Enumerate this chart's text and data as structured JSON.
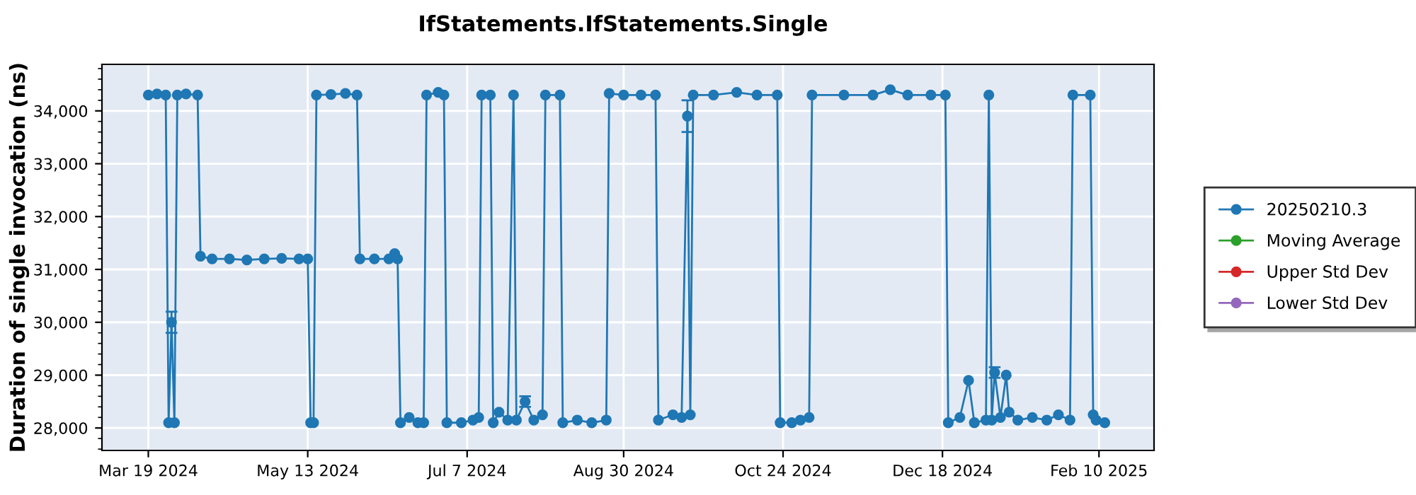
{
  "chart_data": {
    "type": "line",
    "title": "IfStatements.IfStatements.Single",
    "ylabel": "Duration of single invocation (ns)",
    "x": [
      "2024-03-19",
      "2024-03-22",
      "2024-03-25",
      "2024-03-26",
      "2024-03-27",
      "2024-03-28",
      "2024-03-29",
      "2024-04-01",
      "2024-04-05",
      "2024-04-06",
      "2024-04-10",
      "2024-04-16",
      "2024-04-22",
      "2024-04-28",
      "2024-05-04",
      "2024-05-10",
      "2024-05-13",
      "2024-05-14",
      "2024-05-15",
      "2024-05-16",
      "2024-05-21",
      "2024-05-26",
      "2024-05-30",
      "2024-05-31",
      "2024-06-05",
      "2024-06-10",
      "2024-06-12",
      "2024-06-13",
      "2024-06-14",
      "2024-06-17",
      "2024-06-20",
      "2024-06-22",
      "2024-06-23",
      "2024-06-27",
      "2024-06-29",
      "2024-06-30",
      "2024-07-05",
      "2024-07-09",
      "2024-07-11",
      "2024-07-12",
      "2024-07-15",
      "2024-07-16",
      "2024-07-18",
      "2024-07-21",
      "2024-07-23",
      "2024-07-24",
      "2024-07-27",
      "2024-07-30",
      "2024-08-02",
      "2024-08-03",
      "2024-08-08",
      "2024-08-09",
      "2024-08-14",
      "2024-08-19",
      "2024-08-24",
      "2024-08-25",
      "2024-08-30",
      "2024-09-05",
      "2024-09-10",
      "2024-09-11",
      "2024-09-16",
      "2024-09-19",
      "2024-09-21",
      "2024-09-22",
      "2024-09-23",
      "2024-09-30",
      "2024-10-08",
      "2024-10-15",
      "2024-10-22",
      "2024-10-23",
      "2024-10-27",
      "2024-10-30",
      "2024-11-02",
      "2024-11-03",
      "2024-11-14",
      "2024-11-24",
      "2024-11-30",
      "2024-12-06",
      "2024-12-14",
      "2024-12-19",
      "2024-12-20",
      "2024-12-24",
      "2024-12-27",
      "2024-12-29",
      "2025-01-02",
      "2025-01-03",
      "2025-01-04",
      "2025-01-05",
      "2025-01-07",
      "2025-01-09",
      "2025-01-10",
      "2025-01-13",
      "2025-01-18",
      "2025-01-23",
      "2025-01-27",
      "2025-01-31",
      "2025-02-01",
      "2025-02-07",
      "2025-02-08",
      "2025-02-09",
      "2025-02-12"
    ],
    "series": [
      {
        "name": "20250210.3",
        "color": "#1f77b4",
        "values": [
          34300,
          34320,
          34300,
          28100,
          30000,
          28100,
          34300,
          34320,
          34300,
          31250,
          31200,
          31200,
          31180,
          31200,
          31210,
          31200,
          31200,
          28100,
          28100,
          34300,
          34310,
          34330,
          34300,
          31200,
          31200,
          31200,
          31300,
          31200,
          28100,
          28200,
          28100,
          28100,
          34300,
          34350,
          34300,
          28100,
          28100,
          28150,
          28200,
          34300,
          34300,
          28100,
          28300,
          28150,
          34300,
          28150,
          28500,
          28150,
          28250,
          34300,
          34300,
          28100,
          28150,
          28100,
          28150,
          34330,
          34300,
          34300,
          34300,
          28150,
          28250,
          28200,
          33900,
          28250,
          34300,
          34300,
          34350,
          34300,
          34300,
          28100,
          28100,
          28150,
          28200,
          34300,
          34300,
          34300,
          34400,
          34300,
          34300,
          34300,
          28100,
          28200,
          28900,
          28100,
          28150,
          34300,
          28150,
          29050,
          28200,
          29000,
          28300,
          28150,
          28200,
          28150,
          28250,
          28150,
          34300,
          34300,
          28250,
          28150,
          28100
        ],
        "errors": [
          null,
          null,
          null,
          null,
          200,
          null,
          null,
          null,
          null,
          null,
          null,
          null,
          null,
          null,
          null,
          null,
          null,
          null,
          null,
          null,
          null,
          null,
          null,
          null,
          null,
          null,
          null,
          null,
          null,
          null,
          null,
          null,
          null,
          null,
          null,
          null,
          null,
          null,
          null,
          null,
          null,
          null,
          null,
          null,
          null,
          null,
          100,
          null,
          null,
          null,
          null,
          null,
          null,
          null,
          null,
          null,
          null,
          null,
          null,
          null,
          null,
          null,
          300,
          null,
          null,
          null,
          null,
          null,
          null,
          null,
          null,
          null,
          null,
          null,
          null,
          null,
          null,
          null,
          null,
          null,
          null,
          null,
          null,
          null,
          null,
          null,
          null,
          100,
          null,
          null,
          null,
          null,
          null,
          null,
          null,
          null,
          null,
          null,
          null,
          null,
          null
        ]
      },
      {
        "name": "Moving Average",
        "color": "#2ca02c",
        "values": [
          null,
          null,
          null,
          null,
          null,
          null,
          null,
          null,
          null,
          null,
          null,
          null,
          null,
          null,
          null,
          null,
          null,
          null,
          null,
          null,
          null,
          null,
          null,
          null,
          null,
          null,
          null,
          null,
          null,
          null,
          null,
          null,
          null,
          null,
          null,
          null,
          null,
          null,
          null,
          null,
          null,
          null,
          null,
          null,
          null,
          null,
          null,
          null,
          null,
          null,
          null,
          null,
          null,
          null,
          null,
          null,
          null,
          null,
          null,
          null,
          null,
          null,
          null,
          null,
          null,
          null,
          null,
          null,
          null,
          null,
          null,
          null,
          null,
          null,
          null,
          null,
          null,
          null,
          null,
          null,
          null,
          null,
          null,
          null,
          null,
          null,
          null,
          null,
          null,
          null,
          null,
          null,
          null,
          null,
          null,
          null,
          null,
          null,
          null,
          null,
          null
        ]
      },
      {
        "name": "Upper Std Dev",
        "color": "#d62728",
        "values": [
          null,
          null,
          null,
          null,
          null,
          null,
          null,
          null,
          null,
          null,
          null,
          null,
          null,
          null,
          null,
          null,
          null,
          null,
          null,
          null,
          null,
          null,
          null,
          null,
          null,
          null,
          null,
          null,
          null,
          null,
          null,
          null,
          null,
          null,
          null,
          null,
          null,
          null,
          null,
          null,
          null,
          null,
          null,
          null,
          null,
          null,
          null,
          null,
          null,
          null,
          null,
          null,
          null,
          null,
          null,
          null,
          null,
          null,
          null,
          null,
          null,
          null,
          null,
          null,
          null,
          null,
          null,
          null,
          null,
          null,
          null,
          null,
          null,
          null,
          null,
          null,
          null,
          null,
          null,
          null,
          null,
          null,
          null,
          null,
          null,
          null,
          null,
          null,
          null,
          null,
          null,
          null,
          null,
          null,
          null,
          null,
          null,
          null,
          null,
          null,
          null
        ]
      },
      {
        "name": "Lower Std Dev",
        "color": "#9467bd",
        "values": [
          null,
          null,
          null,
          null,
          null,
          null,
          null,
          null,
          null,
          null,
          null,
          null,
          null,
          null,
          null,
          null,
          null,
          null,
          null,
          null,
          null,
          null,
          null,
          null,
          null,
          null,
          null,
          null,
          null,
          null,
          null,
          null,
          null,
          null,
          null,
          null,
          null,
          null,
          null,
          null,
          null,
          null,
          null,
          null,
          null,
          null,
          null,
          null,
          null,
          null,
          null,
          null,
          null,
          null,
          null,
          null,
          null,
          null,
          null,
          null,
          null,
          null,
          null,
          null,
          null,
          null,
          null,
          null,
          null,
          null,
          null,
          null,
          null,
          null,
          null,
          null,
          null,
          null,
          null,
          null,
          null,
          null,
          null,
          null,
          null,
          null,
          null,
          null,
          null,
          null,
          null,
          null,
          null,
          null,
          null,
          null,
          null,
          null,
          null,
          null,
          null
        ]
      }
    ],
    "xlim": [
      "2024-03-03",
      "2025-03-01"
    ],
    "xticks": [
      {
        "value": "2024-03-19",
        "label": "Mar 19 2024"
      },
      {
        "value": "2024-05-13",
        "label": "May 13 2024"
      },
      {
        "value": "2024-07-07",
        "label": "Jul 7 2024"
      },
      {
        "value": "2024-08-30",
        "label": "Aug 30 2024"
      },
      {
        "value": "2024-10-24",
        "label": "Oct 24 2024"
      },
      {
        "value": "2024-12-18",
        "label": "Dec 18 2024"
      },
      {
        "value": "2025-02-10",
        "label": "Feb 10 2025"
      }
    ],
    "ylim": [
      27575,
      34880
    ],
    "yticks": [
      {
        "value": 28000,
        "label": "28,000"
      },
      {
        "value": 29000,
        "label": "29,000"
      },
      {
        "value": 30000,
        "label": "30,000"
      },
      {
        "value": 31000,
        "label": "31,000"
      },
      {
        "value": 32000,
        "label": "32,000"
      },
      {
        "value": 33000,
        "label": "33,000"
      },
      {
        "value": 34000,
        "label": "34,000"
      }
    ],
    "grid": true,
    "legend": "right",
    "marker": "circle",
    "line_style": "solid"
  }
}
